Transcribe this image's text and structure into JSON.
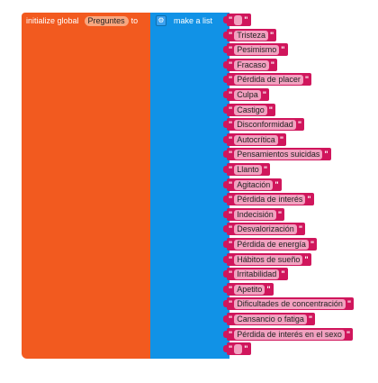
{
  "init_block": {
    "prefix": "initialize global",
    "var_name": "Preguntes",
    "suffix": "to"
  },
  "list_block": {
    "label": "make a list",
    "gear_icon": "gear-icon"
  },
  "items": [
    "",
    "Tristeza",
    "Pesimismo",
    "Fracaso",
    "Pérdida de placer",
    "Culpa",
    "Castigo",
    "Disconformidad",
    "Autocrítica",
    "Pensamientos suicidas",
    "Llanto",
    "Agitación",
    "Pérdida de interés",
    "Indecisión",
    "Desvalorización",
    "Pérdida de energía",
    "Hábitos de sueño",
    "Irritabilidad",
    "Apetito",
    "Dificultades de concentración",
    "Cansancio o fatiga",
    "Pérdida de interés en el sexo",
    ""
  ],
  "quote_char": "\"",
  "colors": {
    "variables": "#f25a1f",
    "lists": "#1192e6",
    "text": "#d0165c"
  }
}
